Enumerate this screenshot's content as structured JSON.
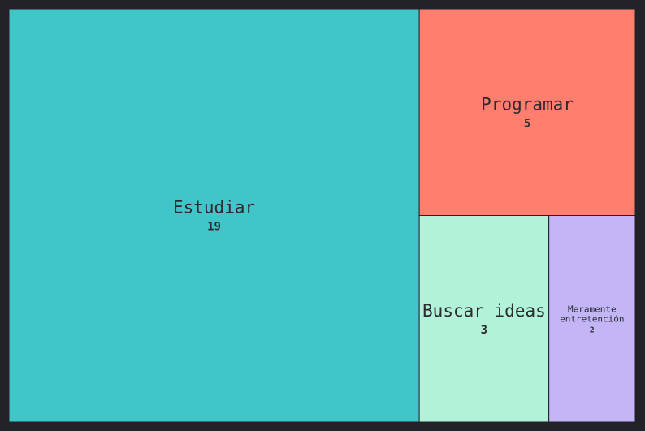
{
  "chart_data": {
    "type": "treemap",
    "title": "",
    "items": [
      {
        "label": "Estudiar",
        "value": 19,
        "color": "#40c6c8"
      },
      {
        "label": "Programar",
        "value": 5,
        "color": "#ff7e6e"
      },
      {
        "label": "Buscar ideas",
        "value": 3,
        "color": "#b1f2d8"
      },
      {
        "label": "Meramente entretención",
        "label_lines": [
          "Meramente",
          "entretención"
        ],
        "value": 2,
        "color": "#c4b5f7"
      }
    ]
  },
  "colors": {
    "background": "#222228",
    "text": "#2b2b30"
  }
}
